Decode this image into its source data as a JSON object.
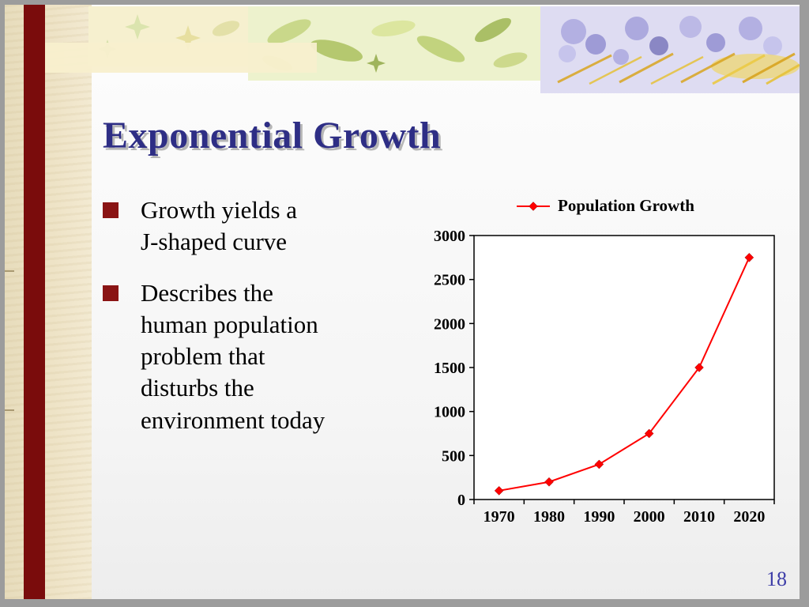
{
  "slide": {
    "title": "Exponential Growth",
    "page_number": "18"
  },
  "bullets": {
    "items": [
      {
        "lines": [
          "Growth yields a",
          "J-shaped curve"
        ]
      },
      {
        "lines": [
          "Describes the",
          "human population",
          "problem that",
          "disturbs the",
          "environment today"
        ]
      }
    ]
  },
  "chart_data": {
    "type": "line",
    "title": "",
    "categories": [
      "1970",
      "1980",
      "1990",
      "2000",
      "2010",
      "2020"
    ],
    "series": [
      {
        "name": "Population Growth",
        "values": [
          100,
          200,
          400,
          750,
          1500,
          2750
        ]
      }
    ],
    "ylim": [
      0,
      3000
    ],
    "yticks": [
      0,
      500,
      1000,
      1500,
      2000,
      2500,
      3000
    ],
    "grid": false,
    "legend_position": "top",
    "marker": "diamond",
    "line_color": "#ff0000"
  },
  "colors": {
    "bar_maroon": "#7a0c0c",
    "bullet_maroon": "#8a1414",
    "title_blue": "#2e2e85",
    "page_blue": "#3d3da8",
    "series_red": "#ff0000"
  }
}
